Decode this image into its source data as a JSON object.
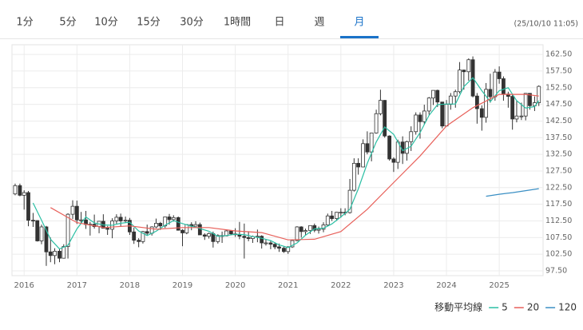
{
  "tabs": [
    "1分",
    "5分",
    "10分",
    "15分",
    "30分",
    "1時間",
    "日",
    "週",
    "月"
  ],
  "active_tab": 8,
  "timestamp": "(25/10/10 11:05)",
  "chart_data": {
    "type": "candlestick",
    "up_color": "#ffffff",
    "down_color": "#333333",
    "edge_color": "#333333",
    "grid": true,
    "xlim": [
      2015.77,
      2025.83
    ],
    "xticks": [
      2016,
      2017,
      2018,
      2019,
      2020,
      2021,
      2022,
      2023,
      2024,
      2025
    ],
    "ylim": [
      96.06,
      165.4
    ],
    "yticks": [
      {
        "value": 97.5,
        "label": "97.50"
      },
      {
        "value": 102.5,
        "label": "102.50"
      },
      {
        "value": 107.5,
        "label": "107.50"
      },
      {
        "value": 112.5,
        "label": "112.50"
      },
      {
        "value": 117.5,
        "label": "117.50"
      },
      {
        "value": 122.5,
        "label": "122.50"
      },
      {
        "value": 127.5,
        "label": "127.50"
      },
      {
        "value": 132.5,
        "label": "132.50"
      },
      {
        "value": 137.5,
        "label": "137.50"
      },
      {
        "value": 142.5,
        "label": "142.50"
      },
      {
        "value": 147.5,
        "label": "147.50"
      },
      {
        "value": 152.5,
        "label": "152.50"
      },
      {
        "value": 157.5,
        "label": "157.50"
      },
      {
        "value": 162.5,
        "label": "162.50"
      }
    ],
    "x": [
      2015.83,
      2015.92,
      2016,
      2016.08,
      2016.17,
      2016.25,
      2016.33,
      2016.42,
      2016.5,
      2016.58,
      2016.67,
      2016.75,
      2016.83,
      2016.92,
      2017,
      2017.08,
      2017.17,
      2017.25,
      2017.33,
      2017.42,
      2017.5,
      2017.58,
      2017.67,
      2017.75,
      2017.83,
      2017.92,
      2018,
      2018.08,
      2018.17,
      2018.25,
      2018.33,
      2018.42,
      2018.5,
      2018.58,
      2018.67,
      2018.75,
      2018.83,
      2018.92,
      2019,
      2019.08,
      2019.17,
      2019.25,
      2019.33,
      2019.42,
      2019.5,
      2019.58,
      2019.67,
      2019.75,
      2019.83,
      2019.92,
      2020,
      2020.08,
      2020.17,
      2020.25,
      2020.33,
      2020.42,
      2020.5,
      2020.58,
      2020.67,
      2020.75,
      2020.83,
      2020.92,
      2021,
      2021.08,
      2021.17,
      2021.25,
      2021.33,
      2021.42,
      2021.5,
      2021.58,
      2021.67,
      2021.75,
      2021.83,
      2021.92,
      2022,
      2022.08,
      2022.17,
      2022.25,
      2022.33,
      2022.42,
      2022.5,
      2022.58,
      2022.67,
      2022.75,
      2022.83,
      2022.92,
      2023,
      2023.08,
      2023.17,
      2023.25,
      2023.33,
      2023.42,
      2023.5,
      2023.58,
      2023.67,
      2023.75,
      2023.83,
      2023.92,
      2024,
      2024.08,
      2024.17,
      2024.25,
      2024.33,
      2024.42,
      2024.5,
      2024.58,
      2024.67,
      2024.75,
      2024.83,
      2024.92,
      2025,
      2025.08,
      2025.17,
      2025.25,
      2025.33,
      2025.42,
      2025.5,
      2025.58,
      2025.67,
      2025.75
    ],
    "open": [
      120.6,
      123.1,
      120.2,
      121.0,
      112.7,
      112.6,
      106.5,
      110.7,
      103.2,
      102.1,
      103.4,
      101.3,
      104.8,
      114.5,
      116.9,
      112.8,
      112.8,
      111.4,
      111.5,
      110.8,
      112.4,
      110.3,
      110.0,
      112.5,
      113.6,
      112.5,
      112.7,
      109.2,
      106.7,
      106.3,
      109.3,
      108.8,
      110.7,
      111.8,
      111.0,
      113.7,
      112.9,
      113.5,
      109.7,
      108.9,
      111.4,
      110.9,
      111.4,
      108.3,
      107.9,
      108.7,
      106.3,
      108.1,
      108.0,
      109.5,
      108.6,
      108.4,
      107.9,
      107.5,
      107.2,
      107.8,
      107.9,
      105.9,
      105.9,
      105.5,
      104.7,
      104.3,
      103.3,
      104.7,
      106.6,
      110.7,
      109.3,
      109.6,
      111.1,
      109.7,
      110.0,
      111.3,
      114.0,
      113.2,
      115.1,
      115.1,
      115.0,
      121.7,
      129.8,
      128.7,
      135.7,
      133.2,
      138.9,
      144.7,
      148.7,
      138.0,
      131.1,
      130.1,
      136.2,
      132.8,
      136.3,
      139.3,
      144.3,
      142.3,
      145.5,
      149.4,
      151.7,
      148.2,
      141.0,
      147.5,
      150.0,
      151.3,
      157.8,
      157.3,
      160.9,
      150.0,
      146.2,
      143.6,
      152.0,
      149.8,
      157.2,
      155.2,
      150.6,
      149.9,
      143.1,
      144.0,
      144.0,
      150.8,
      147.1,
      148.0
    ],
    "high": [
      123.7,
      123.7,
      121.7,
      121.5,
      114.9,
      112.7,
      111.4,
      111.0,
      107.5,
      104.3,
      104.3,
      105.5,
      114.8,
      118.7,
      118.6,
      115.2,
      115.5,
      112.2,
      114.4,
      112.4,
      114.5,
      111.0,
      113.3,
      114.5,
      114.7,
      113.8,
      113.4,
      110.5,
      107.3,
      109.5,
      111.4,
      110.9,
      113.2,
      112.2,
      113.7,
      114.6,
      114.2,
      113.8,
      110.0,
      111.5,
      112.1,
      112.4,
      112.0,
      108.8,
      109.0,
      109.3,
      108.5,
      109.3,
      109.7,
      109.7,
      110.3,
      112.2,
      111.7,
      109.4,
      108.1,
      109.9,
      108.2,
      107.1,
      106.6,
      106.1,
      105.7,
      104.8,
      104.9,
      106.7,
      110.9,
      110.9,
      110.2,
      111.1,
      111.7,
      110.8,
      112.1,
      114.7,
      115.5,
      115.2,
      116.3,
      116.3,
      125.1,
      131.3,
      131.3,
      137.0,
      139.4,
      139.0,
      145.9,
      151.9,
      148.8,
      138.2,
      131.6,
      136.9,
      137.9,
      136.6,
      140.9,
      145.1,
      145.1,
      147.4,
      149.7,
      151.7,
      151.9,
      148.2,
      148.8,
      150.9,
      151.9,
      160.2,
      157.9,
      161.3,
      161.9,
      150.9,
      147.2,
      153.9,
      156.7,
      158.1,
      158.9,
      155.9,
      151.3,
      150.5,
      148.7,
      148.0,
      150.9,
      150.9,
      149.9,
      153.2
    ],
    "low": [
      120.2,
      119.9,
      115.9,
      110.9,
      110.7,
      106.3,
      105.5,
      99.0,
      100.1,
      99.5,
      100.1,
      101.2,
      101.2,
      113.1,
      111.6,
      111.6,
      110.1,
      108.1,
      110.2,
      108.8,
      110.6,
      108.3,
      107.3,
      111.6,
      110.8,
      111.9,
      108.3,
      105.6,
      104.6,
      105.7,
      108.1,
      108.1,
      110.3,
      109.8,
      110.4,
      111.4,
      112.3,
      109.6,
      104.9,
      108.5,
      109.7,
      110.8,
      108.3,
      106.8,
      107.2,
      104.5,
      105.7,
      105.9,
      107.9,
      108.4,
      107.7,
      107.0,
      101.2,
      106.4,
      105.9,
      106.1,
      104.2,
      105.1,
      104.0,
      104.0,
      103.2,
      102.9,
      102.6,
      104.4,
      106.4,
      107.5,
      108.3,
      108.6,
      109.1,
      108.7,
      109.1,
      110.8,
      112.5,
      112.5,
      113.5,
      114.2,
      114.7,
      121.3,
      126.4,
      128.6,
      132.5,
      130.4,
      138.7,
      144.2,
      137.5,
      130.6,
      127.2,
      128.1,
      129.6,
      130.6,
      133.5,
      138.4,
      137.2,
      141.5,
      144.4,
      147.3,
      146.7,
      140.3,
      140.8,
      145.9,
      146.5,
      150.8,
      151.9,
      154.6,
      149.6,
      141.7,
      139.6,
      142.0,
      148.0,
      148.6,
      153.7,
      148.6,
      146.5,
      139.9,
      142.1,
      142.8,
      142.7,
      145.9,
      145.5,
      147.0
    ],
    "close": [
      123.1,
      120.2,
      121.0,
      112.7,
      112.6,
      106.5,
      110.7,
      103.2,
      102.1,
      103.4,
      101.3,
      104.8,
      114.5,
      116.9,
      112.8,
      112.8,
      111.4,
      111.5,
      110.8,
      112.4,
      110.3,
      110.0,
      112.5,
      113.6,
      112.5,
      112.7,
      109.2,
      106.7,
      106.3,
      109.3,
      108.8,
      110.7,
      111.8,
      111.0,
      113.7,
      112.9,
      113.5,
      109.7,
      108.9,
      111.4,
      110.9,
      111.4,
      108.3,
      107.9,
      108.7,
      106.3,
      108.1,
      108.0,
      109.5,
      108.6,
      108.4,
      107.9,
      107.5,
      107.2,
      107.8,
      107.9,
      105.9,
      105.9,
      105.5,
      104.7,
      104.3,
      103.3,
      104.7,
      106.6,
      110.7,
      109.3,
      109.6,
      111.1,
      109.7,
      110.0,
      111.3,
      114.0,
      113.2,
      115.1,
      115.1,
      115.0,
      121.7,
      129.8,
      128.7,
      135.7,
      133.2,
      138.9,
      144.7,
      148.7,
      138.0,
      131.1,
      130.1,
      136.2,
      132.8,
      136.3,
      139.3,
      144.3,
      142.3,
      145.5,
      149.4,
      151.7,
      148.2,
      141.0,
      147.5,
      150.0,
      151.3,
      157.8,
      157.3,
      160.9,
      150.0,
      146.2,
      143.6,
      152.0,
      149.8,
      157.2,
      155.2,
      150.6,
      149.9,
      143.1,
      144.0,
      144.0,
      150.8,
      147.1,
      148.0,
      152.9
    ],
    "legend_title": "移動平均線",
    "legend_position": "bottom-right",
    "lines": [
      {
        "name": "5",
        "color": "#2bbfa4",
        "x": [
          2016.17,
          2016.33,
          2016.5,
          2016.67,
          2016.83,
          2017,
          2017.17,
          2017.33,
          2017.5,
          2017.67,
          2017.83,
          2018,
          2018.17,
          2018.33,
          2018.5,
          2018.67,
          2018.83,
          2019,
          2019.17,
          2019.33,
          2019.5,
          2019.67,
          2019.83,
          2020,
          2020.17,
          2020.33,
          2020.5,
          2020.67,
          2020.83,
          2021,
          2021.17,
          2021.33,
          2021.5,
          2021.67,
          2021.83,
          2022,
          2022.17,
          2022.33,
          2022.5,
          2022.67,
          2022.83,
          2023,
          2023.17,
          2023.33,
          2023.5,
          2023.67,
          2023.83,
          2024,
          2024.17,
          2024.33,
          2024.5,
          2024.67,
          2024.83,
          2025,
          2025.17,
          2025.33,
          2025.5,
          2025.67,
          2025.75
        ],
        "values": [
          117.9,
          112.7,
          107.0,
          104.1,
          105.2,
          110.1,
          113.7,
          111.9,
          111.3,
          111.2,
          111.8,
          112.1,
          109.5,
          108.1,
          109.4,
          111.2,
          112.6,
          111.7,
          110.9,
          110.2,
          109.4,
          107.9,
          108.1,
          108.5,
          108.4,
          107.8,
          107.3,
          106.6,
          105.3,
          104.5,
          105.9,
          108.2,
          110.1,
          110.3,
          111.6,
          113.7,
          116.0,
          122.1,
          129.8,
          136.2,
          140.7,
          138.5,
          133.6,
          134.9,
          139.0,
          144.2,
          147.4,
          147.6,
          147.6,
          152.8,
          155.5,
          151.6,
          148.3,
          151.6,
          152.5,
          148.6,
          146.4,
          146.8,
          148.6
        ]
      },
      {
        "name": "20",
        "color": "#e8605a",
        "x": [
          2016.5,
          2017,
          2017.5,
          2018,
          2018.5,
          2019,
          2019.5,
          2020,
          2020.5,
          2021,
          2021.5,
          2022,
          2022.5,
          2023,
          2023.5,
          2024,
          2024.5,
          2025,
          2025.5,
          2025.75
        ],
        "values": [
          116.5,
          112.0,
          110.5,
          111.0,
          110.0,
          110.5,
          110.5,
          109.5,
          109.0,
          106.8,
          107.0,
          109.3,
          116.0,
          124.0,
          132.0,
          141.0,
          146.5,
          150.5,
          150.5,
          150.0
        ]
      },
      {
        "name": "120",
        "color": "#3a8fc4",
        "x": [
          2024.75,
          2025,
          2025.25,
          2025.5,
          2025.75
        ],
        "values": [
          119.9,
          120.5,
          121.0,
          121.6,
          122.2
        ]
      }
    ]
  }
}
